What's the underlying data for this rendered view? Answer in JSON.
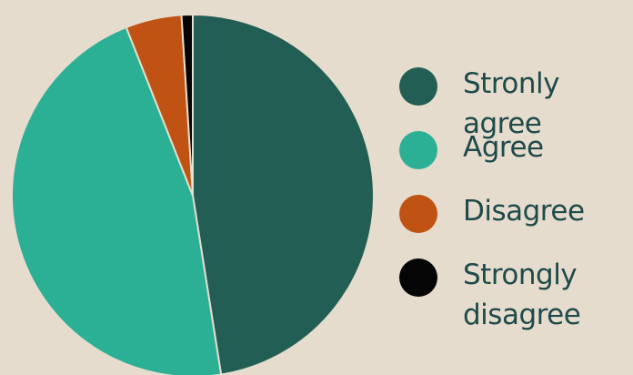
{
  "chart_data": {
    "type": "pie",
    "title": "",
    "slices": [
      {
        "label": "Stronly agree",
        "value": 47.5,
        "color": "#225e54"
      },
      {
        "label": "Agree",
        "value": 46.5,
        "color": "#2bb096"
      },
      {
        "label": "Disagree",
        "value": 5.0,
        "color": "#c05314"
      },
      {
        "label": "Strongly\ndisagree",
        "value": 1.0,
        "color": "#050505"
      }
    ],
    "legend_position": "right"
  }
}
